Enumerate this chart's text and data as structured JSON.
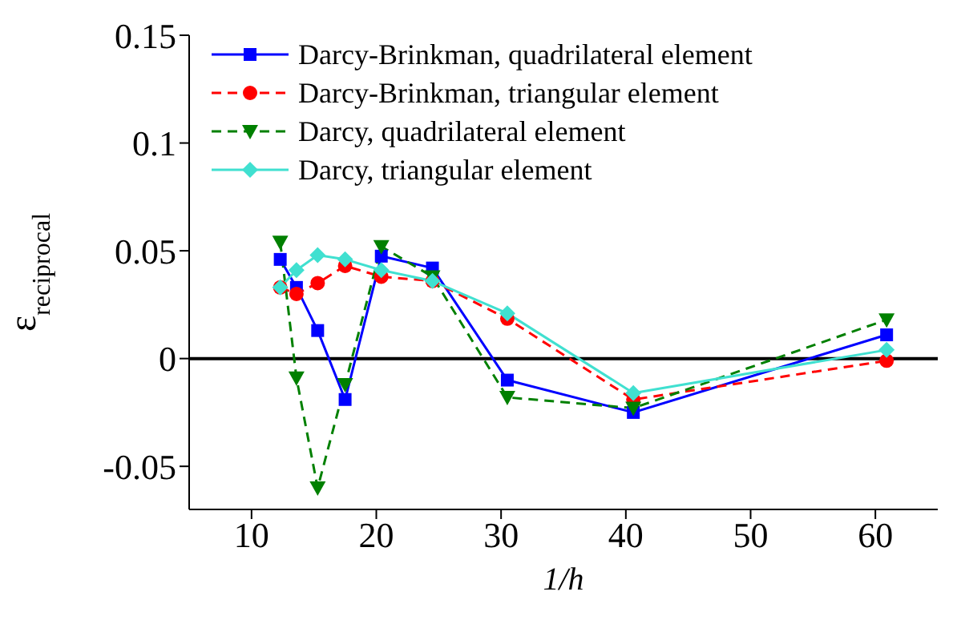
{
  "chart_data": {
    "type": "line",
    "xlabel": "1/h",
    "ylabel": "ε$_{reciprocal}$",
    "x": [
      12.3,
      13.6,
      15.3,
      17.5,
      20.4,
      24.5,
      30.5,
      40.6,
      60.9
    ],
    "series": [
      {
        "name": "Darcy-Brinkman, quadrilateral element",
        "color": "#0000ff",
        "marker": "square",
        "line_style": "solid",
        "values": [
          0.046,
          0.033,
          0.013,
          -0.019,
          0.0475,
          0.042,
          -0.01,
          -0.025,
          0.011
        ]
      },
      {
        "name": "Darcy-Brinkman, triangular element",
        "color": "#ff0000",
        "marker": "circle",
        "line_style": "dashed",
        "values": [
          0.033,
          0.03,
          0.035,
          0.043,
          0.038,
          0.036,
          0.0185,
          -0.019,
          -0.001
        ]
      },
      {
        "name": "Darcy, quadrilateral element",
        "color": "#008000",
        "marker": "triangle",
        "line_style": "dashed",
        "values": [
          0.054,
          -0.009,
          -0.06,
          -0.012,
          0.052,
          0.038,
          -0.018,
          -0.023,
          0.018
        ]
      },
      {
        "name": "Darcy, triangular element",
        "color": "#40e0d0",
        "marker": "diamond",
        "line_style": "solid",
        "values": [
          0.033,
          0.041,
          0.048,
          0.046,
          0.041,
          0.036,
          0.021,
          -0.016,
          0.004
        ]
      }
    ],
    "xlim": [
      5,
      65
    ],
    "xticks": [
      10,
      20,
      30,
      40,
      50,
      60
    ],
    "ylim": [
      -0.07,
      0.15
    ],
    "yticks": [
      -0.05,
      0,
      0.05,
      0.1,
      0.15
    ],
    "ref_lines": [
      {
        "axis": "y",
        "value": 0,
        "color": "#000000"
      }
    ],
    "grid": false,
    "legend": "top left"
  }
}
